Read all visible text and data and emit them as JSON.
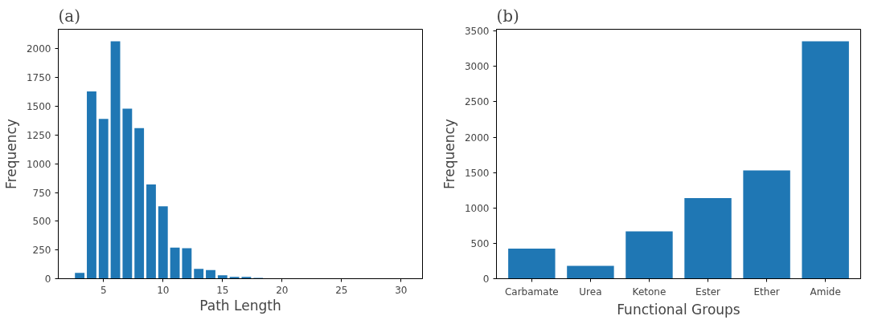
{
  "chart_data": [
    {
      "type": "bar",
      "title": "(a)",
      "xlabel": "Path Length",
      "ylabel": "Frequency",
      "color": "#1f77b4",
      "x": [
        3,
        4,
        5,
        6,
        7,
        8,
        9,
        10,
        11,
        12,
        13,
        14,
        15,
        16,
        17,
        18
      ],
      "values": [
        50,
        1630,
        1390,
        2065,
        1480,
        1310,
        820,
        630,
        270,
        265,
        85,
        75,
        30,
        15,
        15,
        7
      ],
      "xlim": [
        1.2,
        31.8
      ],
      "xticks": [
        5,
        10,
        15,
        20,
        25,
        30
      ],
      "ylim": [
        0,
        2170
      ],
      "yticks": [
        0,
        250,
        500,
        750,
        1000,
        1250,
        1500,
        1750,
        2000
      ],
      "grid": false
    },
    {
      "type": "bar",
      "title": "(b)",
      "xlabel": "Functional Groups",
      "ylabel": "Frequency",
      "color": "#1f77b4",
      "categories": [
        "Carbamate",
        "Urea",
        "Ketone",
        "Ester",
        "Ether",
        "Amide"
      ],
      "values": [
        425,
        180,
        670,
        1140,
        1530,
        3355
      ],
      "ylim": [
        0,
        3525
      ],
      "yticks": [
        0,
        500,
        1000,
        1500,
        2000,
        2500,
        3000,
        3500
      ],
      "grid": false
    }
  ]
}
